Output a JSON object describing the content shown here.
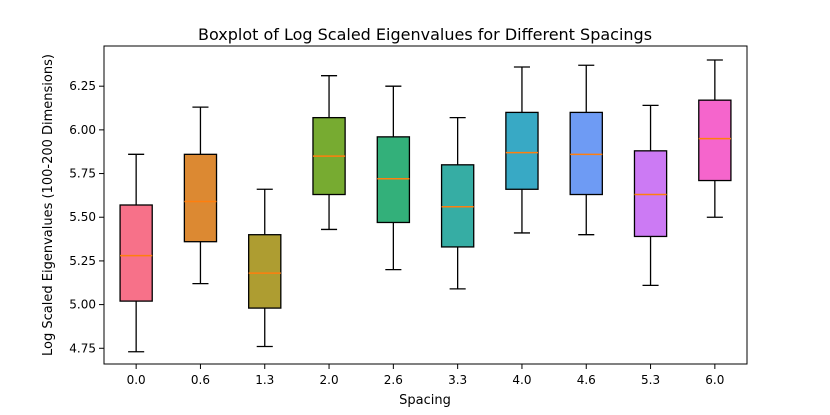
{
  "chart_data": {
    "type": "boxplot",
    "title": "Boxplot of Log Scaled Eigenvalues for Different Spacings",
    "xlabel": "Spacing",
    "ylabel": "Log Scaled Eigenvalues (100-200 Dimensions)",
    "ylim": [
      4.66,
      6.48
    ],
    "yticks": [
      4.75,
      5.0,
      5.25,
      5.5,
      5.75,
      6.0,
      6.25
    ],
    "ytick_labels": [
      "4.75",
      "5.00",
      "5.25",
      "5.50",
      "5.75",
      "6.00",
      "6.25"
    ],
    "grid": false,
    "median_color": "#ff7f0e",
    "categories": [
      "0.0",
      "0.6",
      "1.3",
      "2.0",
      "2.6",
      "3.3",
      "4.0",
      "4.6",
      "5.3",
      "6.0"
    ],
    "boxes": [
      {
        "label": "0.0",
        "whisker_low": 4.73,
        "q1": 5.02,
        "median": 5.28,
        "q3": 5.57,
        "whisker_high": 5.86,
        "color": "#f77189"
      },
      {
        "label": "0.6",
        "whisker_low": 5.12,
        "q1": 5.36,
        "median": 5.59,
        "q3": 5.86,
        "whisker_high": 6.13,
        "color": "#dc8932"
      },
      {
        "label": "1.3",
        "whisker_low": 4.76,
        "q1": 4.98,
        "median": 5.18,
        "q3": 5.4,
        "whisker_high": 5.66,
        "color": "#ae9d31"
      },
      {
        "label": "2.0",
        "whisker_low": 5.43,
        "q1": 5.63,
        "median": 5.85,
        "q3": 6.07,
        "whisker_high": 6.31,
        "color": "#77ab31"
      },
      {
        "label": "2.6",
        "whisker_low": 5.2,
        "q1": 5.47,
        "median": 5.72,
        "q3": 5.96,
        "whisker_high": 6.25,
        "color": "#33b07a"
      },
      {
        "label": "3.3",
        "whisker_low": 5.09,
        "q1": 5.33,
        "median": 5.56,
        "q3": 5.8,
        "whisker_high": 6.07,
        "color": "#36ada4"
      },
      {
        "label": "4.0",
        "whisker_low": 5.41,
        "q1": 5.66,
        "median": 5.87,
        "q3": 6.1,
        "whisker_high": 6.36,
        "color": "#38a9c5"
      },
      {
        "label": "4.6",
        "whisker_low": 5.4,
        "q1": 5.63,
        "median": 5.86,
        "q3": 6.1,
        "whisker_high": 6.37,
        "color": "#6e9bf4"
      },
      {
        "label": "5.3",
        "whisker_low": 5.11,
        "q1": 5.39,
        "median": 5.63,
        "q3": 5.88,
        "whisker_high": 6.14,
        "color": "#cc7af4"
      },
      {
        "label": "6.0",
        "whisker_low": 5.5,
        "q1": 5.71,
        "median": 5.95,
        "q3": 6.17,
        "whisker_high": 6.4,
        "color": "#f565cc"
      }
    ]
  }
}
